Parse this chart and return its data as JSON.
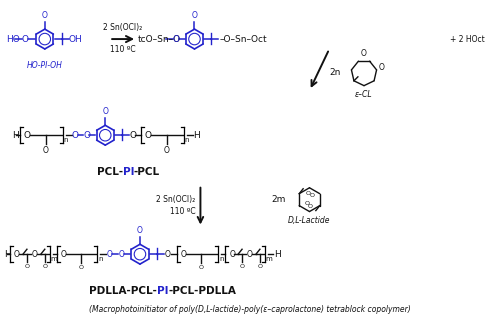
{
  "bg_color": "#ffffff",
  "blue": "#2222cc",
  "black": "#111111",
  "fig_width": 5.0,
  "fig_height": 3.22,
  "dpi": 100,
  "label_pcl_pi_pcl": "PCL-PI-PCL",
  "label_pdlla_pcl_pi_pcl_pdlla": "PDLLA-PCL-PI-PCL-PDLLA",
  "caption": "(Macrophotoinitiator of poly(D,L-lactide)-poly(ε–caprolactone) tetrablock copolymer)",
  "arrow1_top": "2 Sn(OCl)₂",
  "arrow1_bot": "110 ºC",
  "arrow2_top": "2 Sn(OCl)₂",
  "arrow2_bot": "110 ºC",
  "reagent_2n": "2n",
  "reagent_ecl": "ε–CL",
  "reagent_2m": "2m",
  "reagent_lactide": "D,L-Lactide",
  "byproduct": "+ 2 HOct",
  "label_hopi": "HO-PI-OH"
}
